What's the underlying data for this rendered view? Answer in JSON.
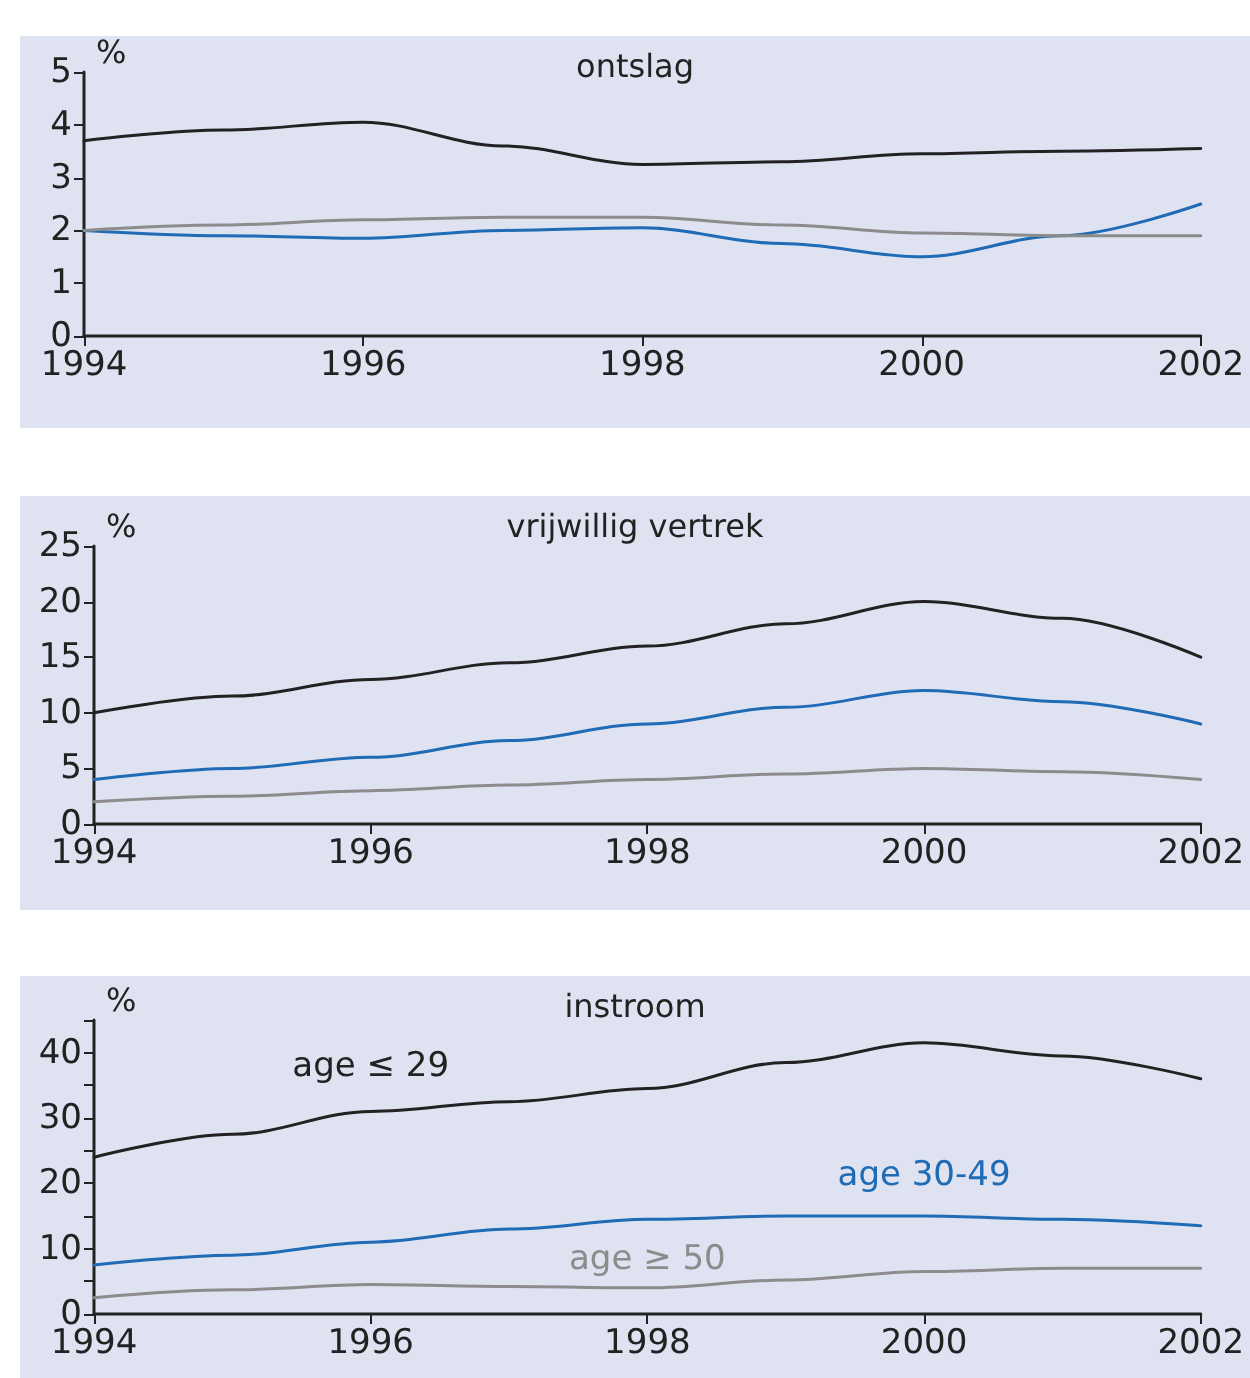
{
  "chart_data": [
    {
      "type": "line",
      "title": "ontslag",
      "ylabel": "%",
      "x": [
        1994,
        1995,
        1996,
        1997,
        1998,
        1999,
        2000,
        2001,
        2002
      ],
      "xlim": [
        1994,
        2002
      ],
      "xticks": [
        1994,
        1996,
        1998,
        2000,
        2002
      ],
      "ylim": [
        0,
        5
      ],
      "yticks": [
        0,
        1,
        2,
        3,
        4,
        5
      ],
      "grid": false,
      "marker": "none",
      "series": [
        {
          "color": "#222222",
          "values": [
            3.7,
            3.9,
            4.05,
            3.6,
            3.25,
            3.3,
            3.45,
            3.5,
            3.55
          ]
        },
        {
          "color": "#1f6bb5",
          "values": [
            2.0,
            1.9,
            1.85,
            2.0,
            2.05,
            1.75,
            1.5,
            1.9,
            2.5
          ]
        },
        {
          "color": "#8c8c8c",
          "values": [
            2.0,
            2.1,
            2.2,
            2.25,
            2.25,
            2.1,
            1.95,
            1.9,
            1.9
          ]
        }
      ]
    },
    {
      "type": "line",
      "title": "vrijwillig vertrek",
      "ylabel": "%",
      "x": [
        1994,
        1995,
        1996,
        1997,
        1998,
        1999,
        2000,
        2001,
        2002
      ],
      "xlim": [
        1994,
        2002
      ],
      "xticks": [
        1994,
        1996,
        1998,
        2000,
        2002
      ],
      "ylim": [
        0,
        25
      ],
      "yticks": [
        0,
        5,
        10,
        15,
        20,
        25
      ],
      "grid": false,
      "marker": "none",
      "series": [
        {
          "color": "#222222",
          "values": [
            10,
            11.5,
            13,
            14.5,
            16,
            18,
            20,
            18.5,
            15
          ]
        },
        {
          "color": "#1f6bb5",
          "values": [
            4,
            5,
            6,
            7.5,
            9,
            10.5,
            12,
            11,
            9
          ]
        },
        {
          "color": "#8c8c8c",
          "values": [
            2,
            2.5,
            3,
            3.5,
            4,
            4.5,
            5,
            4.7,
            4
          ]
        }
      ]
    },
    {
      "type": "line",
      "title": "instroom",
      "ylabel": "%",
      "x": [
        1994,
        1995,
        1996,
        1997,
        1998,
        1999,
        2000,
        2001,
        2002
      ],
      "xlim": [
        1994,
        2002
      ],
      "xticks": [
        1994,
        1996,
        1998,
        2000,
        2002
      ],
      "ylim": [
        0,
        45
      ],
      "yticks": [
        0,
        {
          "value": 5,
          "label": null
        },
        10,
        {
          "value": 15,
          "label": null
        },
        20,
        {
          "value": 25,
          "label": null
        },
        30,
        {
          "value": 35,
          "label": null
        },
        40,
        {
          "value": 45,
          "label": null
        }
      ],
      "grid": false,
      "marker": "none",
      "series": [
        {
          "name": "age ≤ 29",
          "color": "#222222",
          "values": [
            24,
            27.5,
            31,
            32.5,
            34.5,
            38.5,
            41.5,
            39.5,
            36
          ]
        },
        {
          "name": "age 30-49",
          "color": "#1f6bb5",
          "values": [
            7.5,
            9,
            11,
            13,
            14.5,
            15,
            15,
            14.5,
            13.5
          ]
        },
        {
          "name": "age ≥ 50",
          "color": "#8c8c8c",
          "values": [
            2.5,
            3.7,
            4.5,
            4.2,
            4,
            5.2,
            6.5,
            7,
            7
          ]
        }
      ]
    }
  ]
}
